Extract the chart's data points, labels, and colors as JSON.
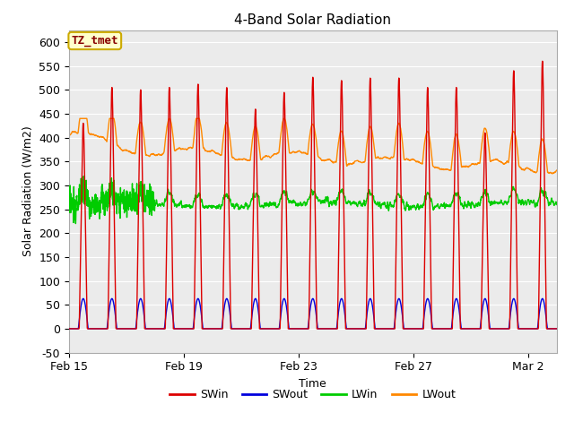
{
  "title": "4-Band Solar Radiation",
  "xlabel": "Time",
  "ylabel": "Solar Radiation (W/m2)",
  "ylim": [
    -50,
    625
  ],
  "yticks": [
    -50,
    0,
    50,
    100,
    150,
    200,
    250,
    300,
    350,
    400,
    450,
    500,
    550,
    600
  ],
  "background_color": "#ffffff",
  "plot_bg_color": "#ebebeb",
  "grid_color": "#ffffff",
  "title_fontsize": 11,
  "label_fontsize": 9,
  "tick_fontsize": 9,
  "annotation_text": "TZ_tmet",
  "annotation_bg": "#ffffcc",
  "annotation_border": "#ccaa00",
  "annotation_text_color": "#880000",
  "series": {
    "SWin": {
      "color": "#dd0000",
      "lw": 1.0
    },
    "SWout": {
      "color": "#0000dd",
      "lw": 1.0
    },
    "LWin": {
      "color": "#00cc00",
      "lw": 1.0
    },
    "LWout": {
      "color": "#ff8800",
      "lw": 1.0
    }
  },
  "xtick_labels": [
    "Feb 15",
    "Feb 19",
    "Feb 23",
    "Feb 27",
    "Mar 2"
  ],
  "xtick_positions": [
    0,
    4,
    8,
    12,
    16
  ],
  "n_days": 17,
  "pts_per_day": 144,
  "legend_fontsize": 9
}
